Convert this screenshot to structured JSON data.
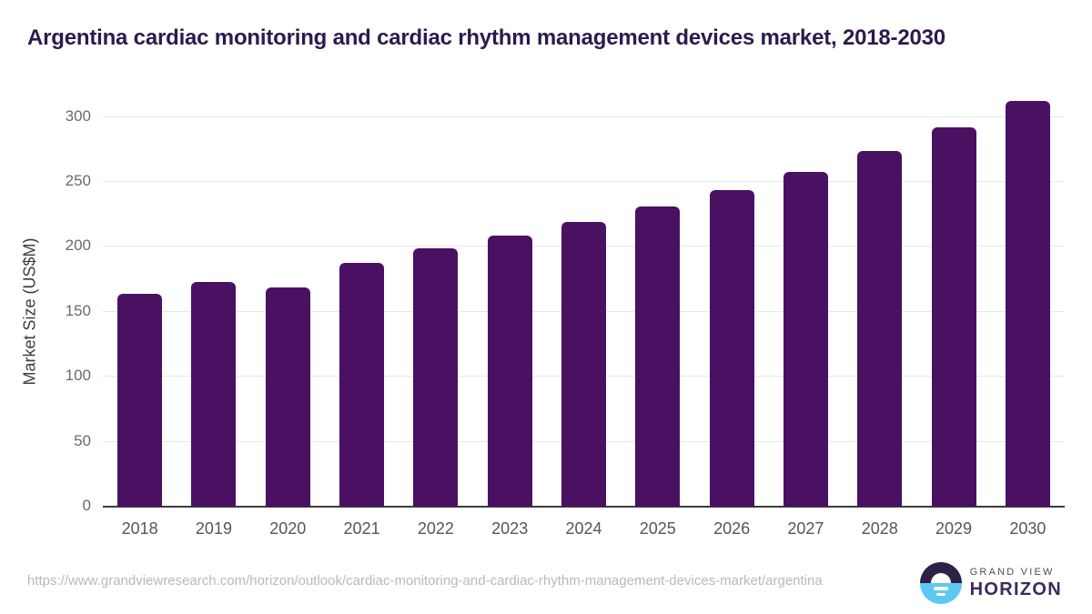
{
  "page": {
    "title": "Argentina cardiac monitoring and cardiac rhythm management devices market, 2018-2030"
  },
  "chart_data": {
    "type": "bar",
    "title": "Argentina cardiac monitoring and cardiac rhythm management devices market, 2018-2030",
    "categories": [
      "2018",
      "2019",
      "2020",
      "2021",
      "2022",
      "2023",
      "2024",
      "2025",
      "2026",
      "2027",
      "2028",
      "2029",
      "2030"
    ],
    "values": [
      164,
      173,
      169,
      188,
      199,
      209,
      219,
      231,
      244,
      258,
      274,
      292,
      312
    ],
    "xlabel": "",
    "ylabel": "Market Size (US$M)",
    "ylim": [
      0,
      320
    ],
    "yticks": [
      0,
      50,
      100,
      150,
      200,
      250,
      300
    ],
    "grid": "horizontal",
    "legend": "none",
    "bar_color": "#4a1162"
  },
  "colors": {
    "title_text": "#2d1a4e",
    "bar_fill": "#4a1162",
    "gridline": "#e7e7e7",
    "axis_line": "#3c3c3c",
    "tick_text": "#6b6b6b",
    "brand_purple": "#3b2a5e",
    "brand_blue": "#5ec7f2"
  },
  "footer": {
    "source_url": "https://www.grandviewresearch.com/horizon/outlook/cardiac-monitoring-and-cardiac-rhythm-management-devices-market/argentina",
    "brand": {
      "top": "GRAND VIEW",
      "bottom": "HORIZON"
    }
  }
}
